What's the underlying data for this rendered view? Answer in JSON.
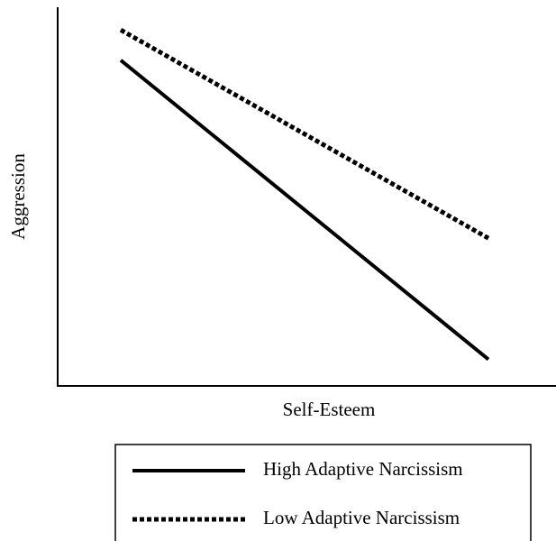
{
  "chart_data": {
    "type": "line",
    "x_label": "Self-Esteem",
    "y_label": "Aggression",
    "categories": [
      null,
      null
    ],
    "ylim": [
      0,
      100
    ],
    "series": [
      {
        "name": "High Adaptive Narcissism",
        "color": "#000000",
        "line_style": "solid",
        "values": [
          86,
          7
        ]
      },
      {
        "name": "Low Adaptive Narcissism",
        "color": "#000000",
        "line_style": "dotted",
        "values": [
          94,
          39
        ]
      }
    ]
  }
}
